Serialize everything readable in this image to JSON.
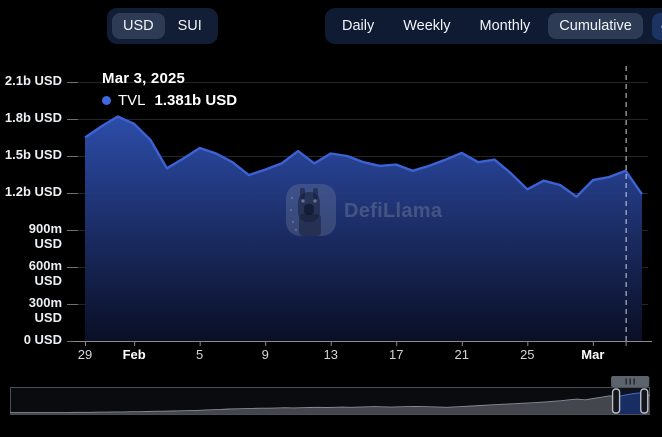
{
  "theme": {
    "background": "#000000",
    "panel": "#121d36",
    "pill_selected": "#2e3b55",
    "expand_pill": "#1d3362",
    "grid": "#232528",
    "axis": "#8a8a8a",
    "tick": "#707070"
  },
  "toolbar": {
    "currency": {
      "options": [
        {
          "label": "USD",
          "selected": true
        },
        {
          "label": "SUI",
          "selected": false
        }
      ]
    },
    "interval": {
      "options": [
        {
          "label": "Daily",
          "selected": false
        },
        {
          "label": "Weekly",
          "selected": false
        },
        {
          "label": "Monthly",
          "selected": false
        },
        {
          "label": "Cumulative",
          "selected": true
        }
      ]
    },
    "expand_label": "<>"
  },
  "tooltip": {
    "date": "Mar 3, 2025",
    "series_label": "TVL",
    "value": "1.381b USD",
    "dot_color": "#4069e1"
  },
  "watermark": {
    "text": "DefiLlama"
  },
  "chart_data": {
    "type": "area",
    "unit": "USD",
    "series_name": "TVL",
    "x": [
      "Jan 29",
      "Jan 30",
      "Jan 31",
      "Feb 1",
      "Feb 2",
      "Feb 3",
      "Feb 4",
      "Feb 5",
      "Feb 6",
      "Feb 7",
      "Feb 8",
      "Feb 9",
      "Feb 10",
      "Feb 11",
      "Feb 12",
      "Feb 13",
      "Feb 14",
      "Feb 15",
      "Feb 16",
      "Feb 17",
      "Feb 18",
      "Feb 19",
      "Feb 20",
      "Feb 21",
      "Feb 22",
      "Feb 23",
      "Feb 24",
      "Feb 25",
      "Feb 26",
      "Feb 27",
      "Feb 28",
      "Mar 1",
      "Mar 2",
      "Mar 3",
      "Mar 4"
    ],
    "values_b": [
      1.65,
      1.74,
      1.82,
      1.76,
      1.63,
      1.4,
      1.48,
      1.565,
      1.52,
      1.45,
      1.345,
      1.39,
      1.44,
      1.54,
      1.44,
      1.52,
      1.5,
      1.45,
      1.42,
      1.43,
      1.38,
      1.42,
      1.47,
      1.525,
      1.45,
      1.47,
      1.36,
      1.23,
      1.3,
      1.265,
      1.17,
      1.305,
      1.33,
      1.381,
      1.19
    ],
    "ylim": [
      0,
      2.1
    ],
    "grid": true,
    "yticks": [
      {
        "label": "2.1b USD",
        "value_b": 2.1
      },
      {
        "label": "1.8b USD",
        "value_b": 1.8
      },
      {
        "label": "1.5b USD",
        "value_b": 1.5
      },
      {
        "label": "1.2b USD",
        "value_b": 1.2
      },
      {
        "label": "900m USD",
        "value_b": 0.9
      },
      {
        "label": "600m USD",
        "value_b": 0.6
      },
      {
        "label": "300m USD",
        "value_b": 0.3
      },
      {
        "label": "0 USD",
        "value_b": 0
      }
    ],
    "xticks": [
      {
        "label": "29",
        "index": 0,
        "bold": false
      },
      {
        "label": "Feb",
        "index": 3,
        "bold": true
      },
      {
        "label": "5",
        "index": 7,
        "bold": false
      },
      {
        "label": "9",
        "index": 11,
        "bold": false
      },
      {
        "label": "13",
        "index": 15,
        "bold": false
      },
      {
        "label": "17",
        "index": 19,
        "bold": false
      },
      {
        "label": "21",
        "index": 23,
        "bold": false
      },
      {
        "label": "25",
        "index": 27,
        "bold": false
      },
      {
        "label": "Mar",
        "index": 31,
        "bold": true
      }
    ],
    "hover": {
      "index": 33,
      "date": "Mar 3, 2025",
      "value_b": 1.381
    },
    "colors": {
      "line": "#3c63d5",
      "area_top": "#2e4fae",
      "area_mid": "#1a2a60",
      "area_bottom": "#0a0f26",
      "axis_pointer": "#cfd3d9"
    }
  },
  "navigator": {
    "type": "area",
    "values_norm": [
      0.02,
      0.02,
      0.02,
      0.02,
      0.02,
      0.02,
      0.02,
      0.02,
      0.03,
      0.03,
      0.03,
      0.04,
      0.04,
      0.05,
      0.05,
      0.06,
      0.06,
      0.07,
      0.08,
      0.08,
      0.09,
      0.1,
      0.11,
      0.12,
      0.13,
      0.15,
      0.16,
      0.18,
      0.19,
      0.2,
      0.21,
      0.22,
      0.22,
      0.23,
      0.24,
      0.23,
      0.24,
      0.25,
      0.26,
      0.25,
      0.26,
      0.27,
      0.26,
      0.27,
      0.28,
      0.29,
      0.28,
      0.27,
      0.28,
      0.29,
      0.3,
      0.29,
      0.28,
      0.27,
      0.26,
      0.28,
      0.3,
      0.32,
      0.34,
      0.36,
      0.38,
      0.4,
      0.42,
      0.44,
      0.46,
      0.48,
      0.5,
      0.53,
      0.56,
      0.6,
      0.63,
      0.6,
      0.66,
      0.72,
      0.78,
      0.74,
      0.82,
      0.88,
      0.92,
      0.8
    ],
    "window_norm": [
      0.947,
      0.991
    ],
    "colors": {
      "history_fill": "#43464d",
      "history_line": "#868b94",
      "selected_fill": "#152a5c",
      "selected_line": "#3d63cc"
    }
  }
}
